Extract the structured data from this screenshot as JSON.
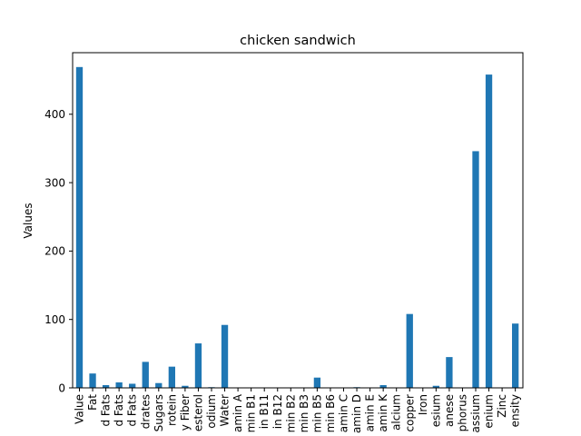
{
  "chart_data": {
    "type": "bar",
    "title": "chicken sandwich",
    "xlabel": "",
    "ylabel": "Values",
    "ylim": [
      0,
      490
    ],
    "yticks": [
      0,
      100,
      200,
      300,
      400
    ],
    "grid": false,
    "legend": "none",
    "bar_color": "#1f77b4",
    "categories": [
      "Value",
      "Fat",
      "d Fats",
      "d Fats",
      "d Fats",
      "drates",
      "Sugars",
      "rotein",
      "y Fiber",
      "esterol",
      "odium",
      "Water",
      "amin A",
      "min B1",
      "in B11",
      "in B12",
      "min B2",
      "min B3",
      "min B5",
      "min B6",
      "amin C",
      "amin D",
      "amin E",
      "amin K",
      "alcium",
      "copper",
      "Iron",
      "esium",
      "anese",
      "phorus",
      "assium",
      "enium",
      "Zinc",
      "ensity"
    ],
    "values": [
      469,
      21,
      4,
      8,
      6,
      38,
      7,
      31,
      3,
      65,
      1,
      92,
      0,
      0,
      0,
      0,
      0,
      0,
      15,
      0,
      0,
      1,
      0,
      4,
      0,
      108,
      0,
      3,
      45,
      0,
      346,
      458,
      0,
      94
    ]
  }
}
